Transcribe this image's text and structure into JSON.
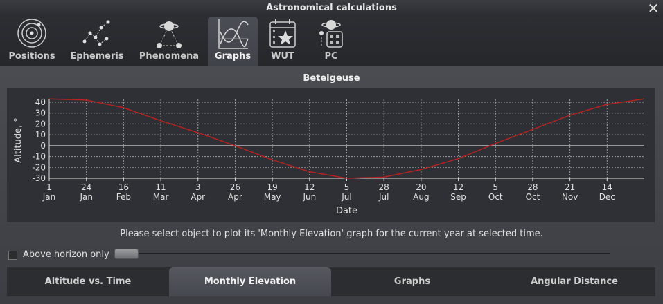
{
  "window": {
    "title": "Astronomical calculations",
    "close_label": "✕"
  },
  "tabs": [
    {
      "label": "Positions",
      "icon": "orbit-icon"
    },
    {
      "label": "Ephemeris",
      "icon": "constellation-icon"
    },
    {
      "label": "Phenomena",
      "icon": "planet-conjunction-icon"
    },
    {
      "label": "Graphs",
      "icon": "graph-icon",
      "active": true
    },
    {
      "label": "WUT",
      "icon": "calendar-star-icon"
    },
    {
      "label": "PC",
      "icon": "planet-grid-icon"
    }
  ],
  "graph": {
    "object_name": "Betelgeuse"
  },
  "chart_data": {
    "type": "line",
    "title": "",
    "xlabel": "Date",
    "ylabel": "Altitude, °",
    "ylim": [
      -30,
      40
    ],
    "yticks": [
      40,
      30,
      20,
      10,
      0,
      -10,
      -20,
      -30
    ],
    "xticks": [
      {
        "day": "1",
        "month": "Jan"
      },
      {
        "day": "24",
        "month": "Jan"
      },
      {
        "day": "16",
        "month": "Feb"
      },
      {
        "day": "11",
        "month": "Mar"
      },
      {
        "day": "3",
        "month": "Apr"
      },
      {
        "day": "26",
        "month": "Apr"
      },
      {
        "day": "19",
        "month": "May"
      },
      {
        "day": "12",
        "month": "Jun"
      },
      {
        "day": "5",
        "month": "Jul"
      },
      {
        "day": "28",
        "month": "Jul"
      },
      {
        "day": "20",
        "month": "Aug"
      },
      {
        "day": "12",
        "month": "Sep"
      },
      {
        "day": "5",
        "month": "Oct"
      },
      {
        "day": "28",
        "month": "Oct"
      },
      {
        "day": "21",
        "month": "Nov"
      },
      {
        "day": "14",
        "month": "Dec"
      }
    ],
    "grid": true,
    "series": [
      {
        "color": "#b52222",
        "x": [
          "1 Jan",
          "24 Jan",
          "16 Feb",
          "11 Mar",
          "3 Apr",
          "26 Apr",
          "19 May",
          "12 Jun",
          "5 Jul",
          "28 Jul",
          "20 Aug",
          "12 Sep",
          "5 Oct",
          "28 Oct",
          "21 Nov",
          "14 Dec",
          "31 Dec"
        ],
        "values": [
          43,
          42,
          35,
          23,
          12,
          0,
          -13,
          -24,
          -30,
          -29,
          -22,
          -12,
          2,
          15,
          28,
          38,
          43
        ]
      }
    ]
  },
  "message": "Please select object to plot its 'Monthly Elevation' graph for the current year at selected time.",
  "controls": {
    "above_horizon_label": "Above horizon only",
    "above_horizon_checked": false
  },
  "bottom_tabs": [
    {
      "label": "Altitude vs. Time"
    },
    {
      "label": "Monthly Elevation",
      "active": true
    },
    {
      "label": "Graphs"
    },
    {
      "label": "Angular Distance"
    }
  ]
}
